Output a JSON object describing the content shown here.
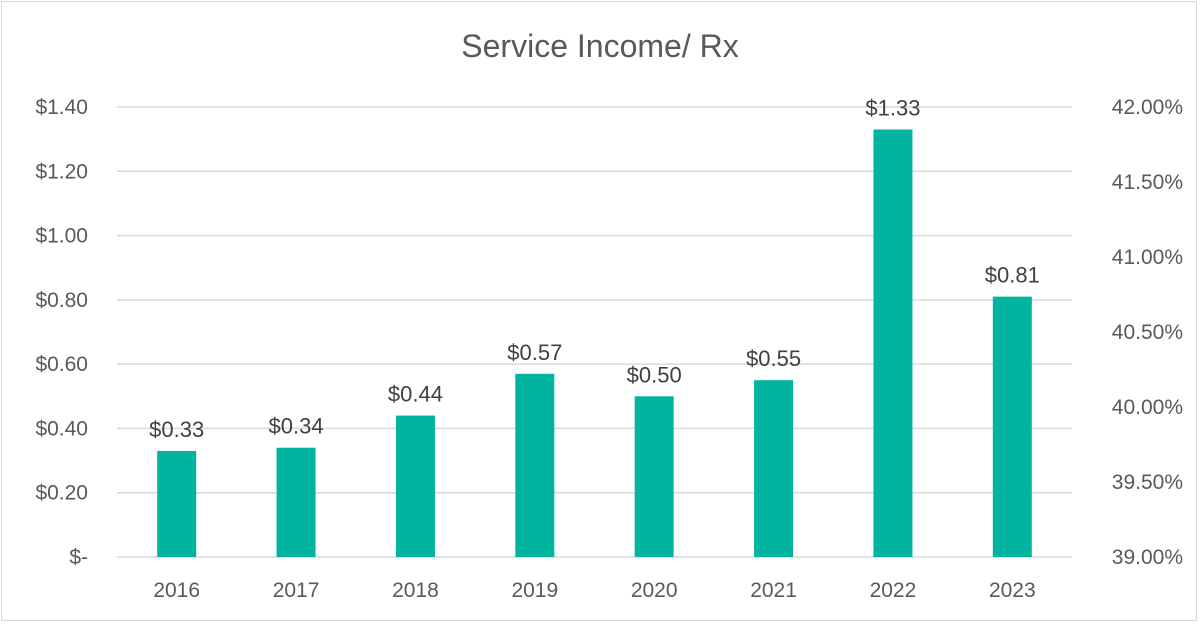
{
  "chart_data": {
    "type": "bar",
    "title": "Service Income/ Rx",
    "xlabel": "",
    "ylabel": "",
    "categories": [
      "2016",
      "2017",
      "2018",
      "2019",
      "2020",
      "2021",
      "2022",
      "2023"
    ],
    "values": [
      0.33,
      0.34,
      0.44,
      0.57,
      0.5,
      0.55,
      1.33,
      0.81
    ],
    "data_labels": [
      "$0.33",
      "$0.34",
      "$0.44",
      "$0.57",
      "$0.50",
      "$0.55",
      "$1.33",
      "$0.81"
    ],
    "ylim": [
      0,
      1.4
    ],
    "y_ticks": [
      0,
      0.2,
      0.4,
      0.6,
      0.8,
      1.0,
      1.2,
      1.4
    ],
    "y_tick_labels": [
      "$-",
      "$0.20",
      "$0.40",
      "$0.60",
      "$0.80",
      "$1.00",
      "$1.20",
      "$1.40"
    ],
    "y2lim": [
      39.0,
      42.0
    ],
    "y2_ticks": [
      39.0,
      39.5,
      40.0,
      40.5,
      41.0,
      41.5,
      42.0
    ],
    "y2_tick_labels": [
      "39.00%",
      "39.50%",
      "40.00%",
      "40.50%",
      "41.00%",
      "41.50%",
      "42.00%"
    ],
    "grid": true,
    "legend": "none",
    "colors": {
      "bar": "#00B4A0",
      "grid": "#d9d9d9",
      "text": "#595959",
      "label": "#404040"
    }
  }
}
